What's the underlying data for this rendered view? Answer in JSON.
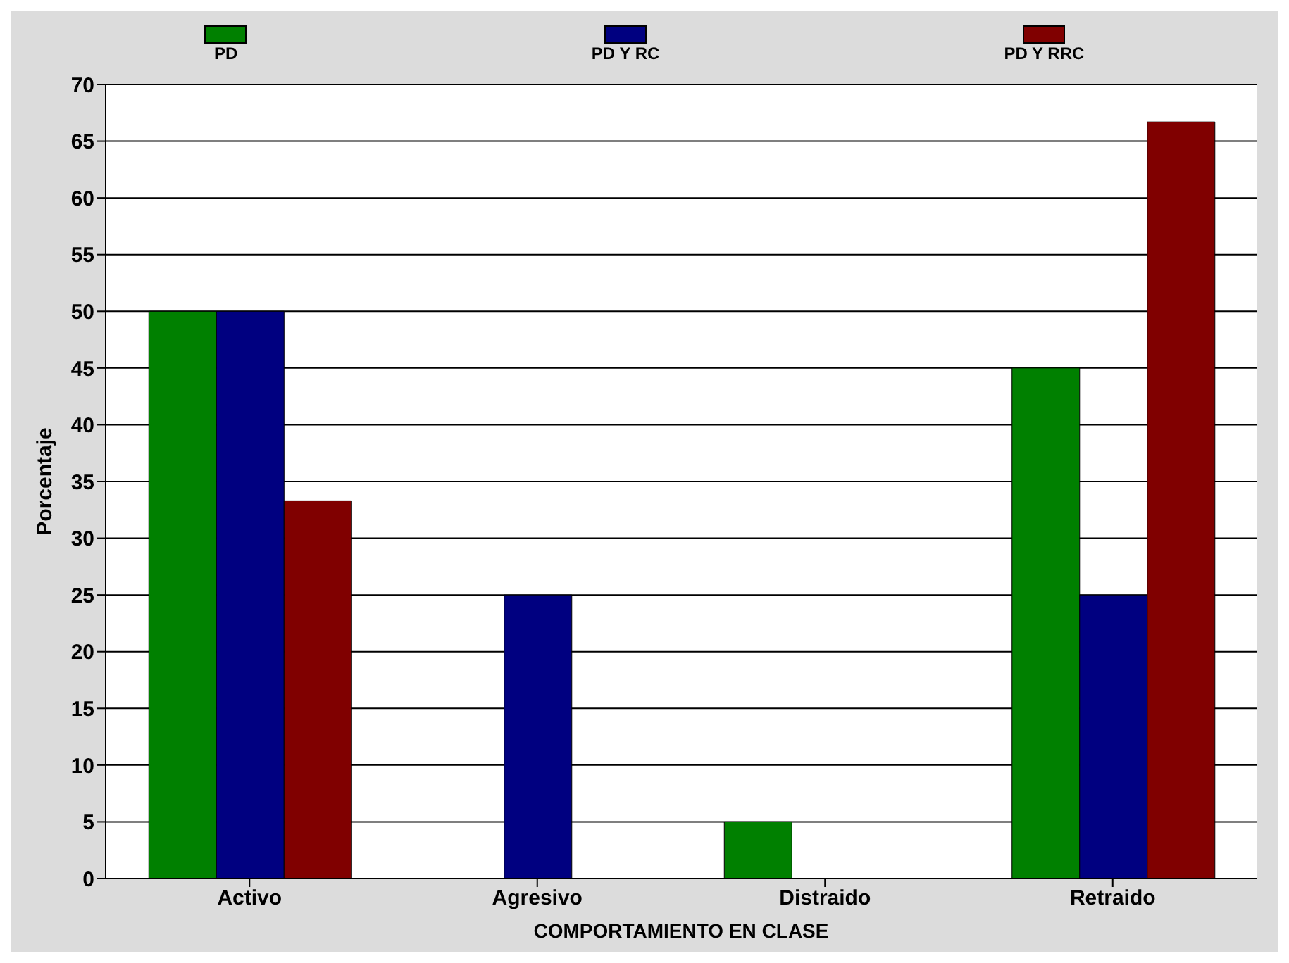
{
  "chart_data": {
    "type": "bar",
    "xlabel": "COMPORTAMIENTO EN CLASE",
    "ylabel": "Porcentaje",
    "categories": [
      "Activo",
      "Agresivo",
      "Distraido",
      "Retraido"
    ],
    "series": [
      {
        "name": "PD",
        "color": "#008000",
        "values": [
          50,
          0,
          5,
          45
        ]
      },
      {
        "name": "PD Y RC",
        "color": "#000080",
        "values": [
          50,
          25,
          0,
          25
        ]
      },
      {
        "name": "PD Y RRC",
        "color": "#800000",
        "values": [
          33.3,
          0,
          0,
          66.7
        ]
      }
    ],
    "ylim": [
      0,
      70
    ],
    "yticks": [
      0,
      5,
      10,
      15,
      20,
      25,
      30,
      35,
      40,
      45,
      50,
      55,
      60,
      65,
      70
    ],
    "grid": "y",
    "legend": "top"
  }
}
